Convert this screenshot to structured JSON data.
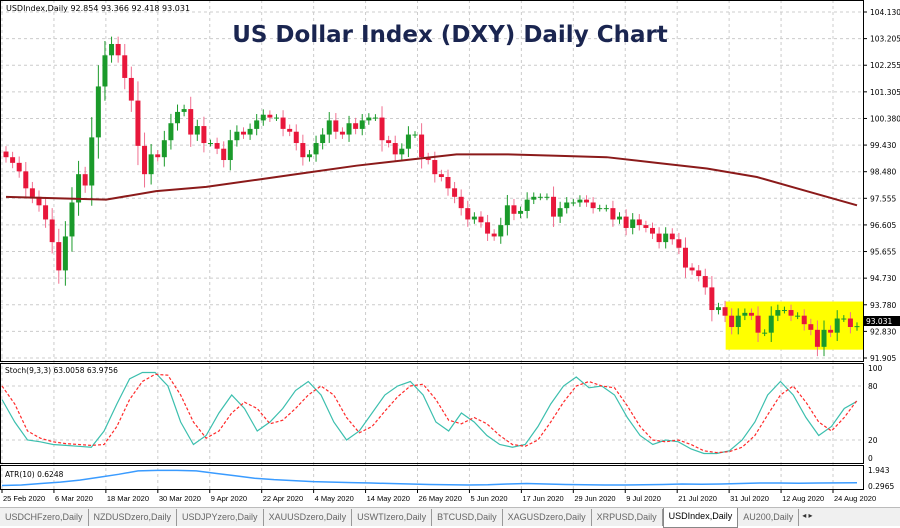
{
  "chart_data": {
    "type": "candlestick",
    "title": "US Dollar Index (DXY) Daily Chart",
    "symbol_info": "USDIndex,Daily  92.854 93.366 92.418 93.031",
    "current_price": "93.031",
    "price_ticks": [
      "104.130",
      "103.205",
      "102.255",
      "101.305",
      "100.380",
      "99.430",
      "98.480",
      "97.555",
      "96.605",
      "95.655",
      "94.730",
      "93.780",
      "92.830",
      "91.905"
    ],
    "ylim": [
      91.905,
      104.13
    ],
    "date_labels": [
      "25 Feb 2020",
      "6 Mar 2020",
      "18 Mar 2020",
      "30 Mar 2020",
      "9 Apr 2020",
      "22 Apr 2020",
      "4 May 2020",
      "14 May 2020",
      "26 May 2020",
      "5 Jun 2020",
      "17 Jun 2020",
      "29 Jun 2020",
      "9 Jul 2020",
      "21 Jul 2020",
      "31 Jul 2020",
      "12 Aug 2020",
      "24 Aug 2020"
    ],
    "first_open": 99.2,
    "closes": [
      99.0,
      98.8,
      98.5,
      97.9,
      97.6,
      97.3,
      96.8,
      96.0,
      95.0,
      96.2,
      97.4,
      98.4,
      98.0,
      99.7,
      101.5,
      102.6,
      103.0,
      102.6,
      101.8,
      101.0,
      99.4,
      98.4,
      99.1,
      99.0,
      99.6,
      100.2,
      100.6,
      100.7,
      99.8,
      100.1,
      99.5,
      99.5,
      99.3,
      98.9,
      99.6,
      99.9,
      99.8,
      100.0,
      100.3,
      100.5,
      100.4,
      100.4,
      100.0,
      99.9,
      99.5,
      99.0,
      99.1,
      99.5,
      99.8,
      100.3,
      99.9,
      99.8,
      100.2,
      100.0,
      100.3,
      100.4,
      100.4,
      99.6,
      99.5,
      99.1,
      99.3,
      99.8,
      99.8,
      99.0,
      98.9,
      98.4,
      98.3,
      97.9,
      97.6,
      97.2,
      96.8,
      96.9,
      96.7,
      96.3,
      96.2,
      96.6,
      97.3,
      97.0,
      97.1,
      97.5,
      97.6,
      97.6,
      97.6,
      96.9,
      97.2,
      97.4,
      97.4,
      97.5,
      97.4,
      97.2,
      97.2,
      97.2,
      96.8,
      96.9,
      96.5,
      96.8,
      96.6,
      96.5,
      96.3,
      96.0,
      96.3,
      96.1,
      95.8,
      95.1,
      95.0,
      94.8,
      94.4,
      93.6,
      93.7,
      93.4,
      93.0,
      93.4,
      93.5,
      93.4,
      92.8,
      92.8,
      93.4,
      93.6,
      93.6,
      93.4,
      93.4,
      93.1,
      92.9,
      92.3,
      92.9,
      92.8,
      93.3,
      93.3,
      93.0,
      93.031
    ],
    "colors": {
      "bull": "#1a9a2a",
      "bear": "#e8173b",
      "ma": "#8b1a1a",
      "highlight": "#ffff00",
      "stoch_main": "#3cbfae",
      "stoch_signal": "#ff2a2a",
      "atr": "#3a9bff"
    },
    "moving_average": [
      97.6,
      97.55,
      97.5,
      97.8,
      97.95,
      98.2,
      98.45,
      98.7,
      98.9,
      99.1,
      99.1,
      99.05,
      99.0,
      98.8,
      98.6,
      98.3,
      97.8,
      97.3
    ],
    "highlight_range": [
      92.2,
      93.9
    ],
    "stochastic": {
      "label": "Stoch(9,3,3) 63.0058 63.9756",
      "ticks": [
        "100",
        "80",
        "20",
        "0"
      ],
      "k": [
        65,
        40,
        20,
        18,
        15,
        14,
        13,
        12,
        30,
        60,
        88,
        95,
        95,
        80,
        40,
        15,
        25,
        50,
        70,
        55,
        30,
        40,
        55,
        75,
        85,
        70,
        40,
        20,
        30,
        50,
        70,
        80,
        85,
        70,
        40,
        30,
        50,
        40,
        25,
        15,
        12,
        15,
        35,
        60,
        80,
        90,
        78,
        80,
        70,
        45,
        25,
        15,
        20,
        18,
        10,
        5,
        5,
        8,
        20,
        40,
        70,
        85,
        70,
        45,
        25,
        35,
        55,
        63
      ],
      "d": [
        80,
        60,
        30,
        22,
        18,
        16,
        15,
        14,
        15,
        35,
        65,
        85,
        93,
        92,
        70,
        40,
        22,
        30,
        50,
        62,
        55,
        38,
        42,
        55,
        70,
        80,
        70,
        45,
        28,
        35,
        52,
        68,
        80,
        82,
        65,
        42,
        38,
        45,
        38,
        25,
        15,
        13,
        20,
        40,
        62,
        80,
        85,
        80,
        78,
        58,
        35,
        20,
        18,
        20,
        15,
        8,
        6,
        7,
        12,
        25,
        48,
        70,
        80,
        62,
        40,
        30,
        45,
        64
      ]
    },
    "atr": {
      "label": "ATR(10) 0.6248",
      "ticks": [
        "1.943",
        "0.2965"
      ],
      "ylim": [
        0.2965,
        1.943
      ],
      "values": [
        0.35,
        0.4,
        0.55,
        0.7,
        0.9,
        1.2,
        1.5,
        1.85,
        1.9,
        1.9,
        1.85,
        1.6,
        1.35,
        1.1,
        0.95,
        0.85,
        0.75,
        0.7,
        0.65,
        0.6,
        0.55,
        0.5,
        0.45,
        0.42,
        0.4,
        0.42,
        0.5,
        0.55,
        0.5,
        0.45,
        0.42,
        0.4,
        0.4,
        0.42,
        0.45,
        0.5,
        0.48,
        0.5,
        0.55,
        0.6,
        0.6,
        0.58,
        0.6,
        0.62,
        0.6248
      ]
    }
  },
  "tabs": [
    "USDCHFzero,Daily",
    "NZDUSDzero,Daily",
    "USDJPYzero,Daily",
    "XAUUSDzero,Daily",
    "USWTIzero,Daily",
    "BTCUSD,Daily",
    "XAGUSDzero,Daily",
    "XRPUSD,Daily",
    "USDIndex,Daily",
    "AU200,Daily"
  ],
  "active_tab": "USDIndex,Daily",
  "tab_arrows": "◂ ▸"
}
